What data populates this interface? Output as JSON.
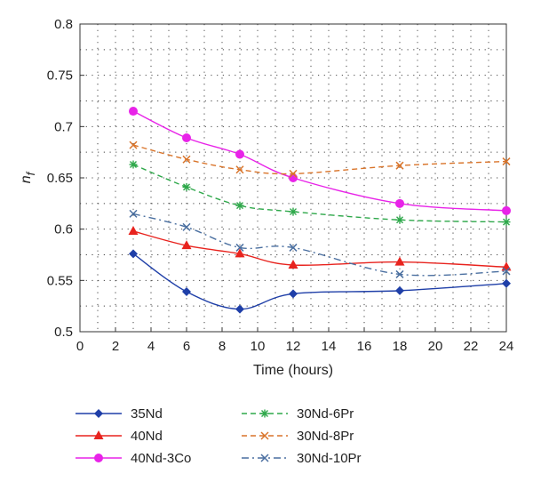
{
  "chart_data": {
    "type": "line",
    "xlabel": "Time (hours)",
    "ylabel": "n",
    "ylabel_subscript": "f",
    "xlim": [
      0,
      24
    ],
    "ylim": [
      0.5,
      0.8
    ],
    "xticks": [
      0,
      2,
      4,
      6,
      8,
      10,
      12,
      14,
      16,
      18,
      20,
      22,
      24
    ],
    "yticks": [
      0.5,
      0.55,
      0.6,
      0.65,
      0.7,
      0.75,
      0.8
    ],
    "ytick_labels": [
      "0.5",
      "0.55",
      "0.6",
      "0.65",
      "0.7",
      "0.75",
      "0.8"
    ],
    "grid": "dotted",
    "legend_position": "bottom",
    "x": [
      3,
      6,
      9,
      12,
      18,
      24
    ],
    "series": [
      {
        "name": "35Nd",
        "values": [
          0.576,
          0.539,
          0.522,
          0.537,
          0.54,
          0.547
        ],
        "color": "#1f3fa8",
        "dash": "solid",
        "marker": "diamond"
      },
      {
        "name": "40Nd",
        "values": [
          0.598,
          0.584,
          0.576,
          0.565,
          0.568,
          0.563
        ],
        "color": "#e8231e",
        "dash": "solid",
        "marker": "triangle"
      },
      {
        "name": "40Nd-3Co",
        "values": [
          0.715,
          0.689,
          0.673,
          0.65,
          0.625,
          0.618
        ],
        "color": "#e823e8",
        "dash": "solid",
        "marker": "circle"
      },
      {
        "name": "30Nd-6Pr",
        "values": [
          0.663,
          0.641,
          0.623,
          0.617,
          0.609,
          0.607
        ],
        "color": "#2ea84a",
        "dash": "dashed",
        "marker": "star"
      },
      {
        "name": "30Nd-8Pr",
        "values": [
          0.682,
          0.668,
          0.658,
          0.654,
          0.662,
          0.666
        ],
        "color": "#d9742a",
        "dash": "dashed",
        "marker": "x"
      },
      {
        "name": "30Nd-10Pr",
        "values": [
          0.615,
          0.602,
          0.582,
          0.582,
          0.556,
          0.559
        ],
        "color": "#4a6fa0",
        "dash": "dashdot",
        "marker": "x"
      }
    ]
  }
}
